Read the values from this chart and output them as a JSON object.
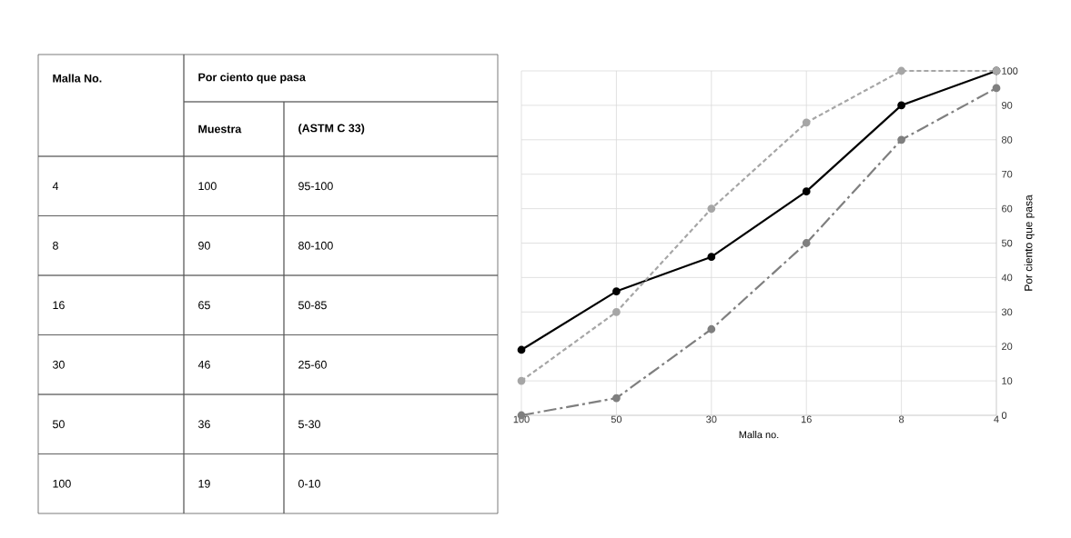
{
  "chart_data": {
    "type": "line",
    "categories": [
      "100",
      "50",
      "30",
      "16",
      "8",
      "4"
    ],
    "series": [
      {
        "color": "#000000",
        "values": [
          19,
          36,
          46,
          65,
          90,
          100
        ],
        "line_style": "solid"
      },
      {
        "color": "#a6a6a6",
        "values": [
          10,
          30,
          60,
          85,
          100,
          100
        ],
        "line_style": "dotted"
      },
      {
        "color": "#7f7f7f",
        "values": [
          0,
          5,
          25,
          50,
          80,
          95
        ],
        "line_style": "dashdot"
      }
    ],
    "ylim": [
      0,
      100
    ],
    "yticks": [
      0,
      10,
      20,
      30,
      40,
      50,
      60,
      70,
      80,
      90,
      100
    ],
    "xlabel": "Malla no.",
    "ylabel": "Por ciento que pasa",
    "grid": true,
    "marker": "circle",
    "annotations": [
      "Malla No.",
      "Por ciento que pasa",
      "Muestra",
      "(ASTM C 33)",
      "4",
      "100",
      "95-100",
      "8",
      "90",
      "80-100",
      "16",
      "65",
      "50-85",
      "30",
      "46",
      "25-60",
      "50",
      "36",
      "5-30",
      "100",
      "19",
      "0-10"
    ]
  }
}
